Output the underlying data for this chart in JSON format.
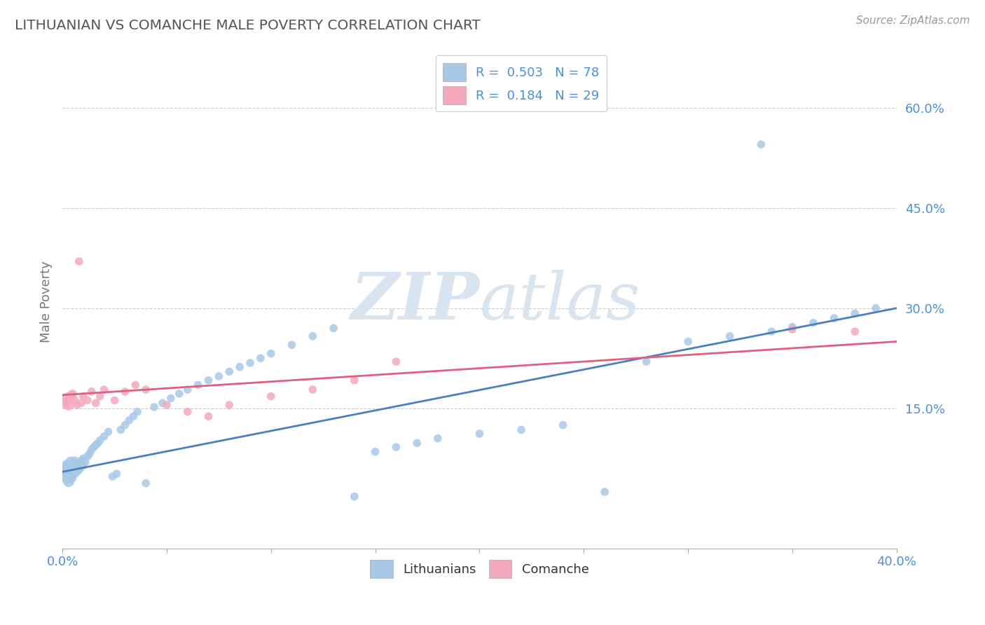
{
  "title": "LITHUANIAN VS COMANCHE MALE POVERTY CORRELATION CHART",
  "source_text": "Source: ZipAtlas.com",
  "ylabel": "Male Poverty",
  "xlim": [
    0.0,
    0.4
  ],
  "ylim": [
    -0.06,
    0.68
  ],
  "yticks": [
    0.15,
    0.3,
    0.45,
    0.6
  ],
  "ytick_labels": [
    "15.0%",
    "30.0%",
    "45.0%",
    "60.0%"
  ],
  "legend1_label": "R =  0.503   N = 78",
  "legend2_label": "R =  0.184   N = 29",
  "blue_color": "#a8c8e8",
  "pink_color": "#f4a8bc",
  "blue_line_color": "#4a7fc0",
  "pink_line_color": "#e06080",
  "title_color": "#555555",
  "axis_label_color": "#777777",
  "tick_color": "#4a90d9",
  "watermark_color": "#d8e4f0",
  "background_color": "#ffffff",
  "grid_color": "#cccccc",
  "blue_x": [
    0.001,
    0.001,
    0.002,
    0.002,
    0.002,
    0.003,
    0.003,
    0.003,
    0.004,
    0.004,
    0.004,
    0.005,
    0.005,
    0.005,
    0.006,
    0.006,
    0.006,
    0.007,
    0.007,
    0.008,
    0.008,
    0.009,
    0.009,
    0.01,
    0.01,
    0.011,
    0.012,
    0.013,
    0.014,
    0.015,
    0.016,
    0.017,
    0.018,
    0.02,
    0.022,
    0.024,
    0.026,
    0.028,
    0.03,
    0.032,
    0.034,
    0.036,
    0.04,
    0.044,
    0.048,
    0.052,
    0.056,
    0.06,
    0.065,
    0.07,
    0.075,
    0.08,
    0.085,
    0.09,
    0.095,
    0.1,
    0.11,
    0.12,
    0.13,
    0.14,
    0.15,
    0.16,
    0.17,
    0.18,
    0.2,
    0.22,
    0.24,
    0.26,
    0.28,
    0.3,
    0.32,
    0.34,
    0.35,
    0.36,
    0.37,
    0.38,
    0.39,
    0.335
  ],
  "blue_y": [
    0.05,
    0.06,
    0.045,
    0.055,
    0.065,
    0.04,
    0.05,
    0.06,
    0.045,
    0.055,
    0.07,
    0.048,
    0.058,
    0.068,
    0.052,
    0.062,
    0.072,
    0.055,
    0.065,
    0.058,
    0.068,
    0.062,
    0.072,
    0.065,
    0.075,
    0.07,
    0.078,
    0.082,
    0.088,
    0.092,
    0.095,
    0.098,
    0.102,
    0.108,
    0.115,
    0.048,
    0.052,
    0.118,
    0.125,
    0.132,
    0.138,
    0.145,
    0.038,
    0.152,
    0.158,
    0.165,
    0.172,
    0.178,
    0.185,
    0.192,
    0.198,
    0.205,
    0.212,
    0.218,
    0.225,
    0.232,
    0.245,
    0.258,
    0.27,
    0.018,
    0.085,
    0.092,
    0.098,
    0.105,
    0.112,
    0.118,
    0.125,
    0.025,
    0.22,
    0.25,
    0.258,
    0.265,
    0.272,
    0.278,
    0.285,
    0.292,
    0.3,
    0.545
  ],
  "pink_x": [
    0.001,
    0.002,
    0.003,
    0.004,
    0.005,
    0.006,
    0.007,
    0.008,
    0.009,
    0.01,
    0.012,
    0.014,
    0.016,
    0.018,
    0.02,
    0.025,
    0.03,
    0.035,
    0.04,
    0.05,
    0.06,
    0.07,
    0.08,
    0.1,
    0.12,
    0.14,
    0.16,
    0.35,
    0.38
  ],
  "pink_y": [
    0.158,
    0.165,
    0.155,
    0.168,
    0.172,
    0.162,
    0.155,
    0.37,
    0.158,
    0.168,
    0.162,
    0.175,
    0.158,
    0.168,
    0.178,
    0.162,
    0.175,
    0.185,
    0.178,
    0.155,
    0.145,
    0.138,
    0.155,
    0.168,
    0.178,
    0.192,
    0.22,
    0.268,
    0.265
  ]
}
